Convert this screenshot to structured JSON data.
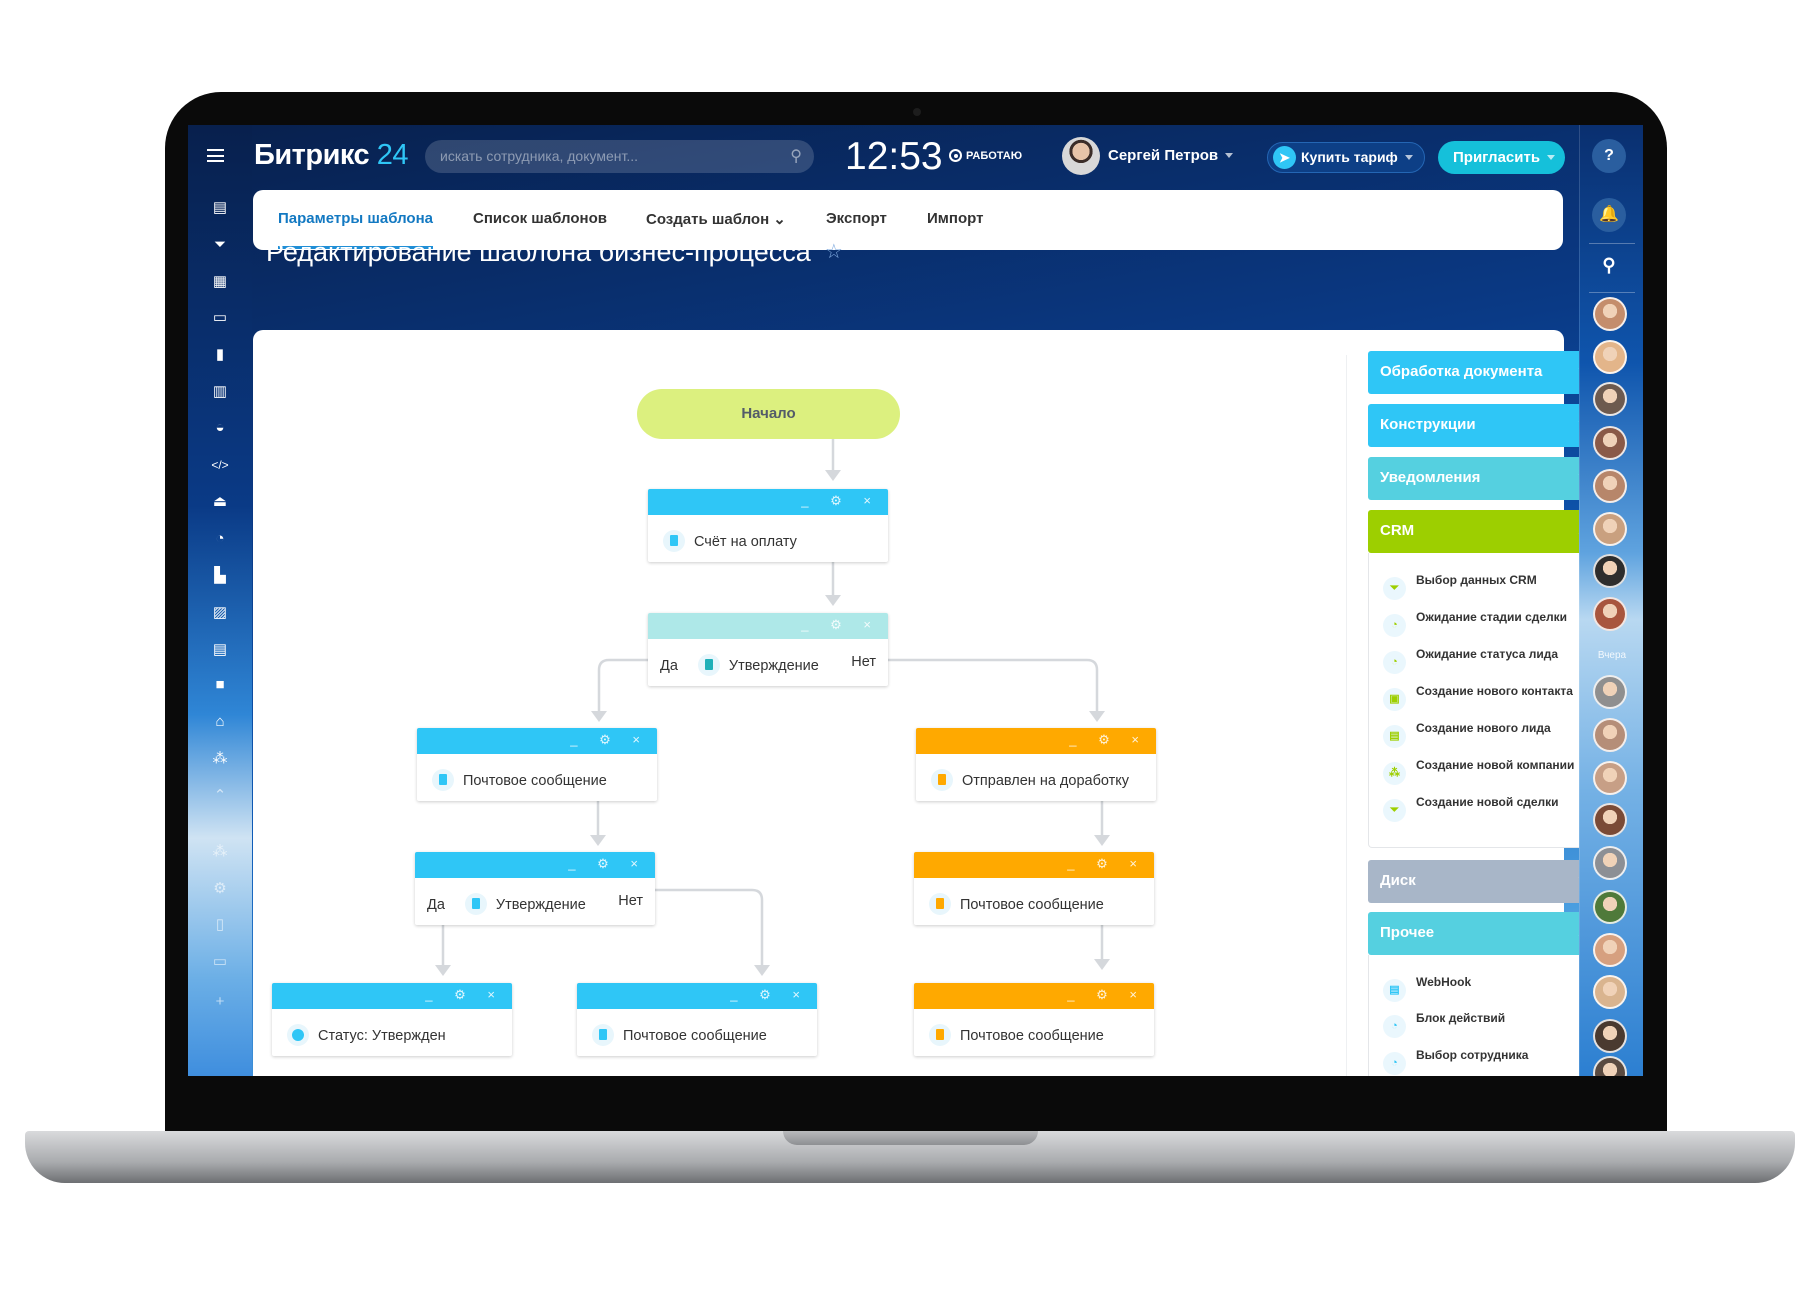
{
  "header": {
    "logo": "Битрикс",
    "logo_num": "24",
    "search_placeholder": "искать сотрудника, документ...",
    "clock": "12:53",
    "status": "РАБОТАЮ",
    "user_name": "Сергей Петров",
    "buy_label": "Купить тариф",
    "invite_label": "Пригласить"
  },
  "tabs": [
    {
      "label": "Параметры шаблона",
      "active": true
    },
    {
      "label": "Список шаблонов"
    },
    {
      "label": "Создать шаблон ⌄"
    },
    {
      "label": "Экспорт"
    },
    {
      "label": "Импорт"
    }
  ],
  "page_title": "Редактирование шаблона бизнес-процесса",
  "left_icons": [
    "tasks-icon",
    "filter-icon",
    "grid-icon",
    "calendar-icon",
    "chart-icon",
    "book-icon",
    "robot-icon",
    "code-icon",
    "store-icon",
    "clock-icon",
    "company-icon",
    "image-icon",
    "document-icon",
    "video-icon",
    "home-icon",
    "sites-icon",
    "arrow-up-icon",
    "structure-icon",
    "settings-icon",
    "tablet-icon",
    "laptop-icon",
    "plus-icon"
  ],
  "diagram": {
    "start": "Начало",
    "controls": "_ ⚙ ×",
    "nodes": {
      "invoice": "Счёт на оплату",
      "approval1": "Утверждение",
      "mail_left": "Почтовое сообщение",
      "rework": "Отправлен на доработку",
      "approval2": "Утверждение",
      "mail_right2": "Почтовое сообщение",
      "status": "Статус: Утвержден",
      "mail_mid": "Почтовое сообщение",
      "mail_right3": "Почтовое сообщение"
    },
    "yes": "Да",
    "no": "Нет"
  },
  "panel": {
    "groups": [
      {
        "label": "Обработка документа",
        "color": "#2fc6f6",
        "expanded": false
      },
      {
        "label": "Конструкции",
        "color": "#2fc6f6",
        "expanded": false
      },
      {
        "label": "Уведомления",
        "color": "#55d0e0",
        "expanded": false
      },
      {
        "label": "CRM",
        "color": "#9dcf00",
        "expanded": true
      },
      {
        "label": "Диск",
        "color": "#a8b6c8",
        "expanded": false
      },
      {
        "label": "Прочее",
        "color": "#55d0e0",
        "expanded": true
      }
    ],
    "crm_items": [
      {
        "label": "Выбор данных CRM",
        "icon": "filter-icon"
      },
      {
        "label": "Ожидание стадии сделки",
        "icon": "clock-icon"
      },
      {
        "label": "Ожидание статуса лида",
        "icon": "clock-icon"
      },
      {
        "label": "Создание нового контакта",
        "icon": "contact-icon"
      },
      {
        "label": "Создание нового лида",
        "icon": "lead-icon"
      },
      {
        "label": "Создание новой компании",
        "icon": "company-icon"
      },
      {
        "label": "Создание новой сделки",
        "icon": "filter-icon"
      }
    ],
    "other_items": [
      {
        "label": "WebHook",
        "icon": "document-icon"
      },
      {
        "label": "Блок действий",
        "icon": "clock-icon"
      },
      {
        "label": "Выбор сотрудника",
        "icon": "clock-icon"
      }
    ]
  },
  "rightbar": {
    "yesterday": "Вчера",
    "avatar_colors": [
      "#c48d6c",
      "#e3b58a",
      "#6d5a4f",
      "#8a5a48",
      "#b7866a",
      "#c9a07f",
      "#2d2d2d",
      "#a8563e",
      "#8f8f8f",
      "#b58e78",
      "#c79f86",
      "#7a4a36",
      "#8c8f95",
      "#4f7a3a",
      "#d6a07f",
      "#d9b48f",
      "#4a3a30",
      "#5a4a40"
    ]
  }
}
